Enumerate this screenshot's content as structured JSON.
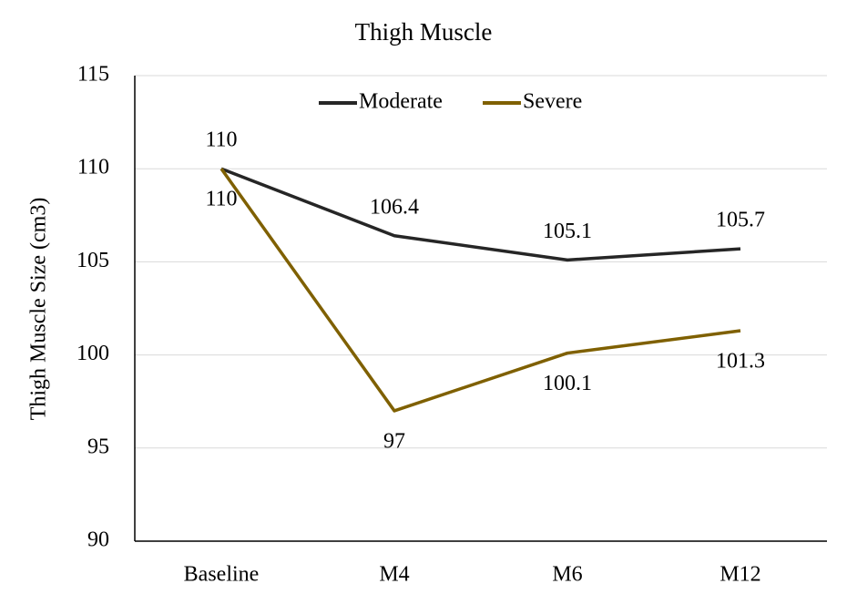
{
  "chart_data": {
    "type": "line",
    "title": "Thigh Muscle",
    "y_label": "Thigh Muscle Size (cm3)",
    "categories": [
      "Baseline",
      "M4",
      "M6",
      "M12"
    ],
    "series": [
      {
        "name": "Moderate",
        "color": "#262626",
        "values": [
          110,
          106.4,
          105.1,
          105.7
        ]
      },
      {
        "name": "Severe",
        "color": "#7f6000",
        "values": [
          110,
          97,
          100.1,
          101.3
        ]
      }
    ],
    "ylim": [
      90,
      115
    ],
    "yticks": [
      90,
      95,
      100,
      105,
      110,
      115
    ],
    "grid": true,
    "legend": "top"
  }
}
